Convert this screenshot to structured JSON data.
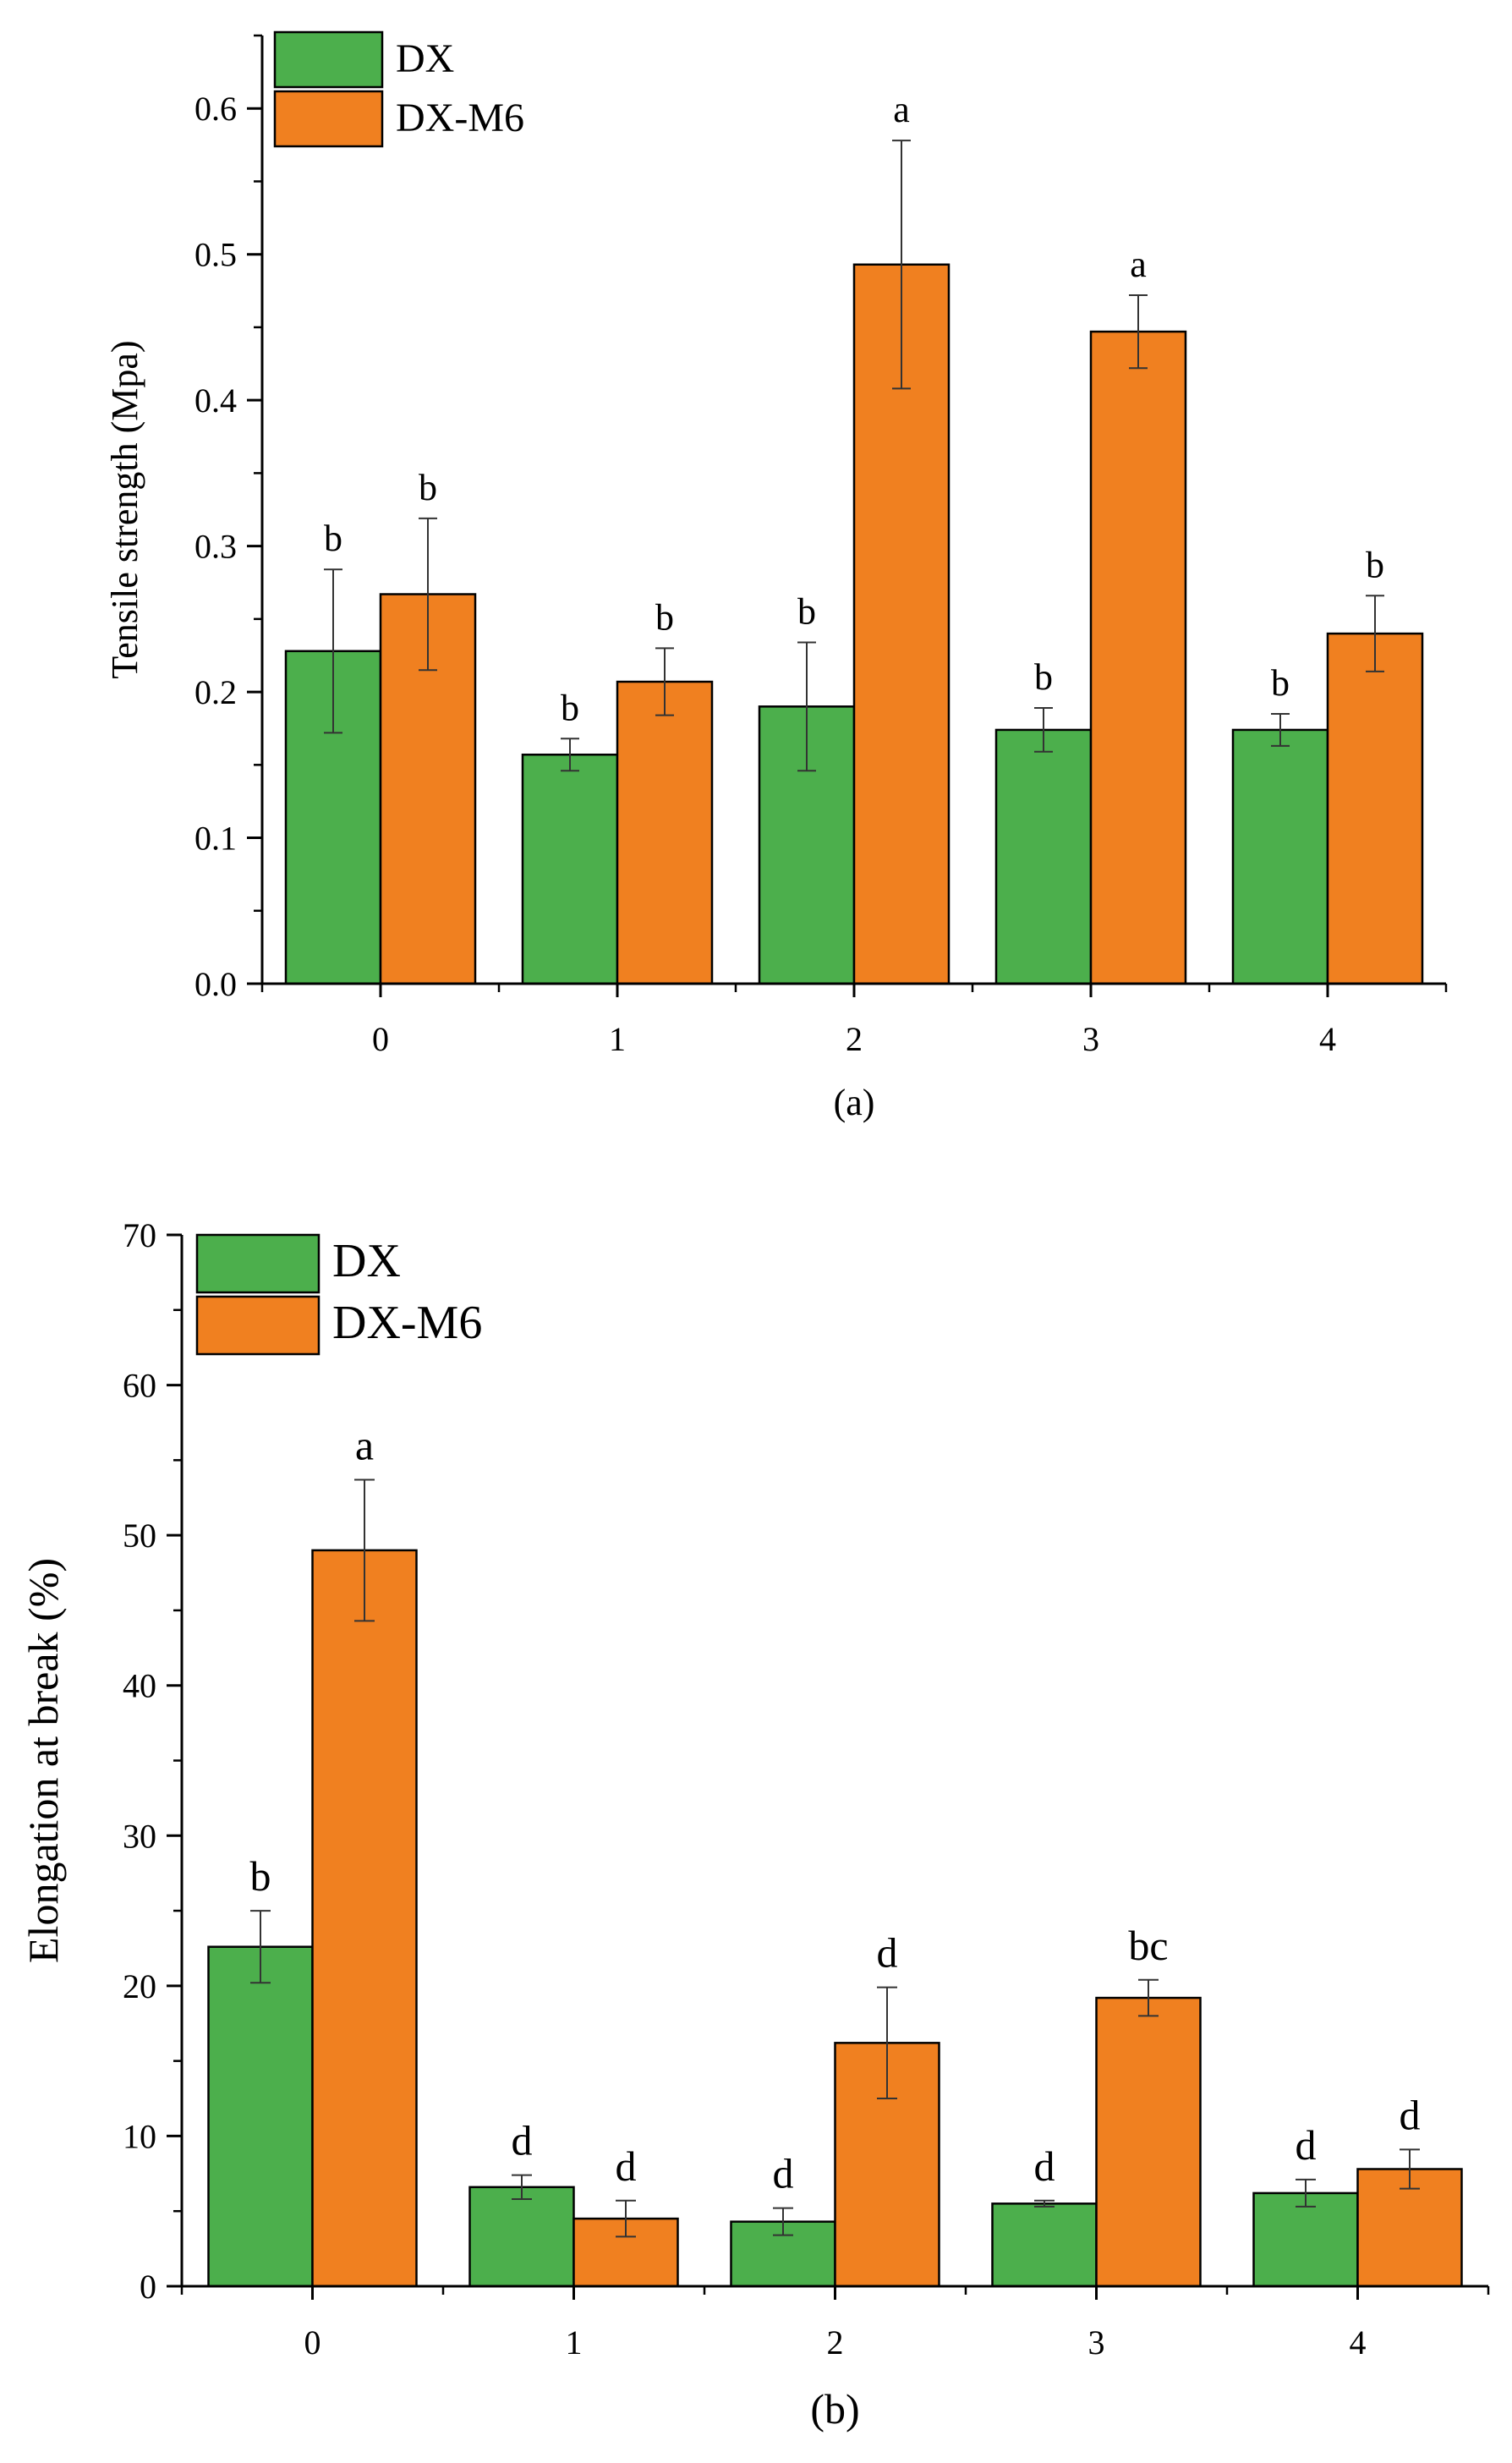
{
  "colors": {
    "DX": "#4CAF4C",
    "DX-M6": "#F08020",
    "axis": "#000000"
  },
  "chart_data": [
    {
      "type": "bar",
      "panel_label": "(a)",
      "ylabel": "Tensile strength (Mpa)",
      "xlabel": "",
      "ylim": [
        0,
        0.65
      ],
      "yticks": [
        0.0,
        0.1,
        0.2,
        0.3,
        0.4,
        0.5,
        0.6
      ],
      "ytick_labels": [
        "0.0",
        "0.1",
        "0.2",
        "0.3",
        "0.4",
        "0.5",
        "0.6"
      ],
      "categories": [
        "0",
        "1",
        "2",
        "3",
        "4"
      ],
      "legend": {
        "placement": "top-left",
        "entries": [
          "DX",
          "DX-M6"
        ]
      },
      "series": [
        {
          "name": "DX",
          "color": "#4CAF4C",
          "values": [
            0.228,
            0.157,
            0.19,
            0.174,
            0.174
          ],
          "errors": [
            0.056,
            0.011,
            0.044,
            0.015,
            0.011
          ],
          "sig_labels": [
            "b",
            "b",
            "b",
            "b",
            "b"
          ]
        },
        {
          "name": "DX-M6",
          "color": "#F08020",
          "values": [
            0.267,
            0.207,
            0.493,
            0.447,
            0.24
          ],
          "errors": [
            0.052,
            0.023,
            0.085,
            0.025,
            0.026
          ],
          "sig_labels": [
            "b",
            "b",
            "a",
            "a",
            "b"
          ]
        }
      ]
    },
    {
      "type": "bar",
      "panel_label": "(b)",
      "ylabel": "Elongation at break (%)",
      "xlabel": "",
      "ylim": [
        0,
        70
      ],
      "yticks": [
        0,
        10,
        20,
        30,
        40,
        50,
        60,
        70
      ],
      "ytick_labels": [
        "0",
        "10",
        "20",
        "30",
        "40",
        "50",
        "60",
        "70"
      ],
      "categories": [
        "0",
        "1",
        "2",
        "3",
        "4"
      ],
      "legend": {
        "placement": "top-left",
        "entries": [
          "DX",
          "DX-M6"
        ]
      },
      "series": [
        {
          "name": "DX",
          "color": "#4CAF4C",
          "values": [
            22.6,
            6.6,
            4.3,
            5.5,
            6.2
          ],
          "errors": [
            2.4,
            0.8,
            0.9,
            0.2,
            0.9
          ],
          "sig_labels": [
            "b",
            "d",
            "d",
            "d",
            "d"
          ]
        },
        {
          "name": "DX-M6",
          "color": "#F08020",
          "values": [
            49.0,
            4.5,
            16.2,
            19.2,
            7.8
          ],
          "errors": [
            4.7,
            1.2,
            3.7,
            1.2,
            1.3
          ],
          "sig_labels": [
            "a",
            "d",
            "d",
            "bc",
            "d"
          ]
        }
      ]
    }
  ]
}
